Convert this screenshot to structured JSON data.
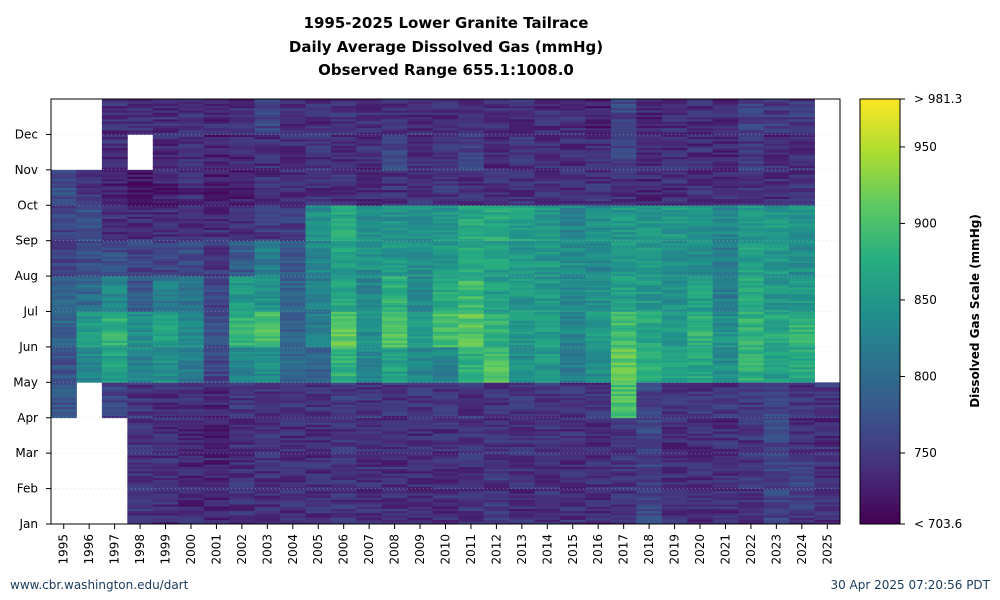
{
  "title_lines": [
    "1995-2025 Lower Granite Tailrace",
    "Daily Average Dissolved Gas (mmHg)",
    "Observed Range 655.1:1008.0"
  ],
  "footer": {
    "left": "www.cbr.washington.edu/dart",
    "right": "30 Apr 2025 07:20:56 PDT"
  },
  "chart_data": {
    "type": "heatmap",
    "x_categories": [
      "1995",
      "1996",
      "1997",
      "1998",
      "1999",
      "2000",
      "2001",
      "2002",
      "2003",
      "2004",
      "2005",
      "2006",
      "2007",
      "2008",
      "2009",
      "2010",
      "2011",
      "2012",
      "2013",
      "2014",
      "2015",
      "2016",
      "2017",
      "2018",
      "2019",
      "2020",
      "2021",
      "2022",
      "2023",
      "2024",
      "2025"
    ],
    "y_categories": [
      "Jan",
      "Feb",
      "Mar",
      "Apr",
      "May",
      "Jun",
      "Jul",
      "Aug",
      "Sep",
      "Oct",
      "Nov",
      "Dec"
    ],
    "colorbar": {
      "label": "Dissolved Gas Scale (mmHg)",
      "min": 703.6,
      "max": 981.3,
      "ticks": [
        750,
        800,
        850,
        900,
        950
      ],
      "min_label": "< 703.6",
      "max_label": "> 981.3",
      "colormap": "viridis"
    },
    "gap_color": "#ffffff",
    "years": {
      "1995": {
        "months": [
          null,
          null,
          null,
          780,
          775,
          790,
          790,
          760,
          760,
          770,
          null,
          null
        ]
      },
      "1996": {
        "months": [
          null,
          null,
          null,
          null,
          830,
          850,
          800,
          770,
          770,
          750,
          null,
          null
        ]
      },
      "1997": {
        "months": [
          null,
          null,
          null,
          760,
          860,
          880,
          830,
          770,
          740,
          730,
          740,
          740
        ]
      },
      "1998": {
        "months": [
          745,
          745,
          745,
          745,
          830,
          840,
          780,
          760,
          740,
          725,
          null,
          740
        ]
      },
      "1999": {
        "months": [
          740,
          740,
          740,
          740,
          840,
          860,
          820,
          760,
          740,
          730,
          735,
          740
        ]
      },
      "2000": {
        "months": [
          735,
          735,
          735,
          740,
          820,
          830,
          810,
          770,
          740,
          735,
          740,
          740
        ]
      },
      "2001": {
        "months": [
          730,
          730,
          730,
          735,
          760,
          770,
          760,
          750,
          740,
          725,
          730,
          735
        ]
      },
      "2002": {
        "months": [
          740,
          740,
          740,
          745,
          830,
          880,
          850,
          780,
          740,
          730,
          735,
          740
        ]
      },
      "2003": {
        "months": [
          740,
          740,
          740,
          745,
          840,
          900,
          840,
          820,
          750,
          740,
          740,
          760
        ]
      },
      "2004": {
        "months": [
          740,
          740,
          740,
          745,
          800,
          790,
          790,
          780,
          750,
          740,
          740,
          740
        ]
      },
      "2005": {
        "months": [
          740,
          740,
          740,
          745,
          790,
          820,
          820,
          830,
          840,
          740,
          745,
          740
        ]
      },
      "2006": {
        "months": [
          745,
          745,
          745,
          750,
          880,
          910,
          870,
          860,
          870,
          740,
          740,
          745
        ]
      },
      "2007": {
        "months": [
          740,
          740,
          740,
          745,
          830,
          840,
          830,
          840,
          840,
          740,
          740,
          740
        ]
      },
      "2008": {
        "months": [
          740,
          740,
          740,
          745,
          860,
          900,
          880,
          850,
          840,
          740,
          760,
          740
        ]
      },
      "2009": {
        "months": [
          740,
          740,
          740,
          745,
          830,
          850,
          830,
          840,
          840,
          740,
          740,
          740
        ]
      },
      "2010": {
        "months": [
          740,
          740,
          740,
          745,
          830,
          900,
          870,
          850,
          850,
          745,
          740,
          740
        ]
      },
      "2011": {
        "months": [
          745,
          745,
          745,
          745,
          880,
          910,
          890,
          870,
          870,
          740,
          760,
          740
        ]
      },
      "2012": {
        "months": [
          745,
          745,
          745,
          745,
          900,
          880,
          860,
          860,
          870,
          740,
          740,
          740
        ]
      },
      "2013": {
        "months": [
          740,
          740,
          740,
          745,
          840,
          850,
          850,
          850,
          860,
          740,
          745,
          740
        ]
      },
      "2014": {
        "months": [
          740,
          740,
          740,
          745,
          850,
          860,
          850,
          850,
          850,
          740,
          740,
          740
        ]
      },
      "2015": {
        "months": [
          740,
          740,
          740,
          745,
          820,
          830,
          830,
          840,
          830,
          740,
          740,
          740
        ]
      },
      "2016": {
        "months": [
          740,
          740,
          740,
          745,
          840,
          850,
          840,
          830,
          840,
          740,
          740,
          730
        ]
      },
      "2017": {
        "months": [
          745,
          745,
          745,
          900,
          910,
          890,
          860,
          850,
          850,
          745,
          760,
          760
        ]
      },
      "2018": {
        "months": [
          760,
          760,
          760,
          760,
          880,
          870,
          850,
          850,
          850,
          735,
          735,
          735
        ]
      },
      "2019": {
        "months": [
          740,
          740,
          740,
          745,
          860,
          850,
          840,
          840,
          850,
          740,
          740,
          740
        ]
      },
      "2020": {
        "months": [
          740,
          740,
          740,
          745,
          870,
          880,
          860,
          840,
          840,
          740,
          740,
          740
        ]
      },
      "2021": {
        "months": [
          740,
          740,
          740,
          745,
          840,
          840,
          820,
          820,
          830,
          735,
          735,
          735
        ]
      },
      "2022": {
        "months": [
          745,
          745,
          745,
          745,
          880,
          880,
          870,
          860,
          850,
          745,
          750,
          760
        ]
      },
      "2023": {
        "months": [
          760,
          760,
          760,
          760,
          860,
          870,
          850,
          850,
          850,
          740,
          740,
          750
        ]
      },
      "2024": {
        "months": [
          750,
          760,
          740,
          745,
          870,
          880,
          850,
          840,
          840,
          740,
          740,
          750
        ]
      },
      "2025": {
        "months": [
          740,
          740,
          740,
          745,
          null,
          null,
          null,
          null,
          null,
          null,
          null,
          null
        ]
      }
    }
  }
}
